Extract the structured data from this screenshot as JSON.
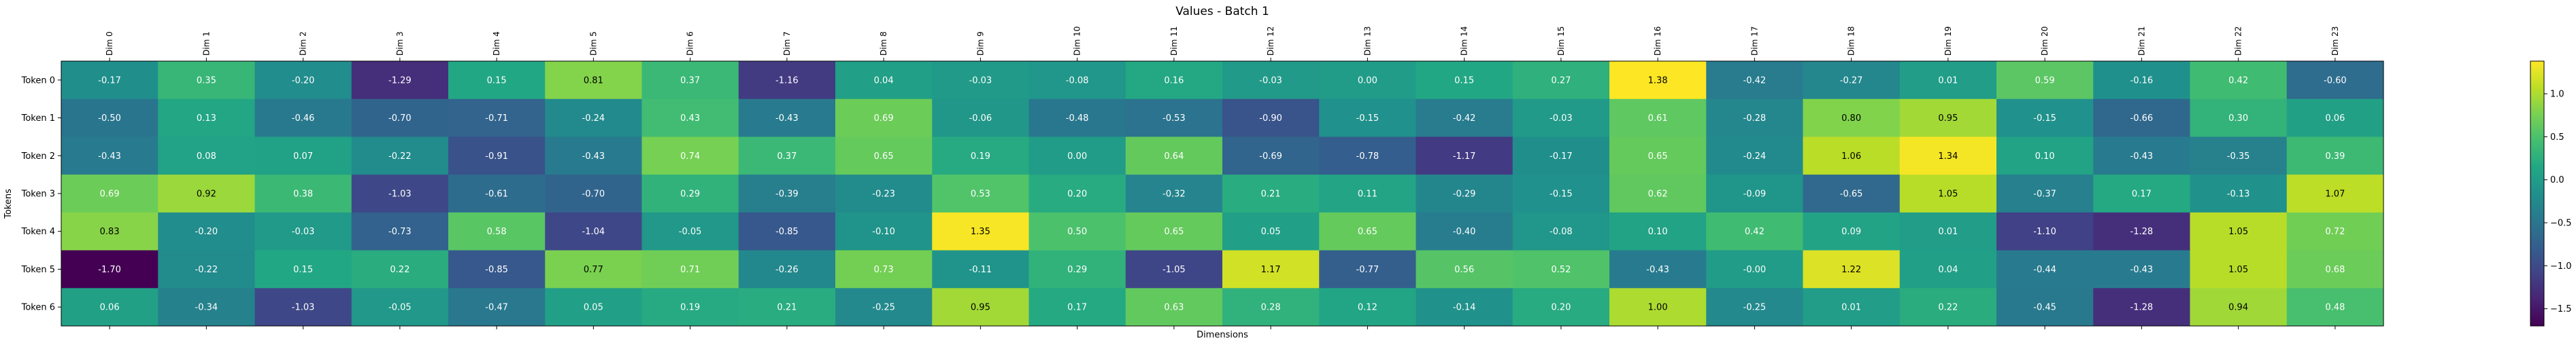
{
  "chart_data": {
    "type": "heatmap",
    "title": "Values - Batch 1",
    "xlabel": "Dimensions",
    "ylabel": "Tokens",
    "x_categories": [
      "Dim 0",
      "Dim 1",
      "Dim 2",
      "Dim 3",
      "Dim 4",
      "Dim 5",
      "Dim 6",
      "Dim 7",
      "Dim 8",
      "Dim 9",
      "Dim 10",
      "Dim 11",
      "Dim 12",
      "Dim 13",
      "Dim 14",
      "Dim 15",
      "Dim 16",
      "Dim 17",
      "Dim 18",
      "Dim 19",
      "Dim 20",
      "Dim 21",
      "Dim 22",
      "Dim 23"
    ],
    "y_categories": [
      "Token 0",
      "Token 1",
      "Token 2",
      "Token 3",
      "Token 4",
      "Token 5",
      "Token 6"
    ],
    "values": [
      [
        -0.17,
        0.35,
        -0.2,
        -1.29,
        0.15,
        0.81,
        0.37,
        -1.16,
        0.04,
        -0.03,
        -0.08,
        0.16,
        -0.03,
        0.0,
        0.15,
        0.27,
        1.38,
        -0.42,
        -0.27,
        0.01,
        0.59,
        -0.16,
        0.42,
        -0.6
      ],
      [
        -0.5,
        0.13,
        -0.46,
        -0.7,
        -0.71,
        -0.24,
        0.43,
        -0.43,
        0.69,
        -0.06,
        -0.48,
        -0.53,
        -0.9,
        -0.15,
        -0.42,
        -0.03,
        0.61,
        -0.28,
        0.8,
        0.95,
        -0.15,
        -0.66,
        0.3,
        0.06
      ],
      [
        -0.43,
        0.08,
        0.07,
        -0.22,
        -0.91,
        -0.43,
        0.74,
        0.37,
        0.65,
        0.19,
        0.0,
        0.64,
        -0.69,
        -0.78,
        -1.17,
        -0.17,
        0.65,
        -0.24,
        1.06,
        1.34,
        0.1,
        -0.43,
        -0.35,
        0.39
      ],
      [
        0.69,
        0.92,
        0.38,
        -1.03,
        -0.61,
        -0.7,
        0.29,
        -0.39,
        -0.23,
        0.53,
        0.2,
        -0.32,
        0.21,
        0.11,
        -0.29,
        -0.15,
        0.62,
        -0.09,
        -0.65,
        1.05,
        -0.37,
        0.17,
        -0.13,
        1.07
      ],
      [
        0.83,
        -0.2,
        -0.03,
        -0.73,
        0.58,
        -1.04,
        -0.05,
        -0.85,
        -0.1,
        1.35,
        0.5,
        0.65,
        0.05,
        0.65,
        -0.4,
        -0.08,
        0.1,
        0.42,
        0.09,
        0.01,
        -1.1,
        -1.28,
        1.05,
        0.72
      ],
      [
        -1.7,
        -0.22,
        0.15,
        0.22,
        -0.85,
        0.77,
        0.71,
        -0.26,
        0.73,
        -0.11,
        0.29,
        -1.05,
        1.17,
        -0.77,
        0.56,
        0.52,
        -0.43,
        -0.0,
        1.22,
        0.04,
        -0.44,
        -0.43,
        1.05,
        0.68
      ],
      [
        0.06,
        -0.34,
        -1.03,
        -0.05,
        -0.47,
        0.05,
        0.19,
        0.21,
        -0.25,
        0.95,
        0.17,
        0.63,
        0.28,
        0.12,
        -0.14,
        0.2,
        1.0,
        -0.25,
        0.01,
        0.22,
        -0.45,
        -1.28,
        0.94,
        0.48
      ]
    ],
    "value_labels": [
      [
        "-0.17",
        "0.35",
        "-0.20",
        "-1.29",
        "0.15",
        "0.81",
        "0.37",
        "-1.16",
        "0.04",
        "-0.03",
        "-0.08",
        "0.16",
        "-0.03",
        "0.00",
        "0.15",
        "0.27",
        "1.38",
        "-0.42",
        "-0.27",
        "0.01",
        "0.59",
        "-0.16",
        "0.42",
        "-0.60"
      ],
      [
        "-0.50",
        "0.13",
        "-0.46",
        "-0.70",
        "-0.71",
        "-0.24",
        "0.43",
        "-0.43",
        "0.69",
        "-0.06",
        "-0.48",
        "-0.53",
        "-0.90",
        "-0.15",
        "-0.42",
        "-0.03",
        "0.61",
        "-0.28",
        "0.80",
        "0.95",
        "-0.15",
        "-0.66",
        "0.30",
        "0.06"
      ],
      [
        "-0.43",
        "0.08",
        "0.07",
        "-0.22",
        "-0.91",
        "-0.43",
        "0.74",
        "0.37",
        "0.65",
        "0.19",
        "0.00",
        "0.64",
        "-0.69",
        "-0.78",
        "-1.17",
        "-0.17",
        "0.65",
        "-0.24",
        "1.06",
        "1.34",
        "0.10",
        "-0.43",
        "-0.35",
        "0.39"
      ],
      [
        "0.69",
        "0.92",
        "0.38",
        "-1.03",
        "-0.61",
        "-0.70",
        "0.29",
        "-0.39",
        "-0.23",
        "0.53",
        "0.20",
        "-0.32",
        "0.21",
        "0.11",
        "-0.29",
        "-0.15",
        "0.62",
        "-0.09",
        "-0.65",
        "1.05",
        "-0.37",
        "0.17",
        "-0.13",
        "1.07"
      ],
      [
        "0.83",
        "-0.20",
        "-0.03",
        "-0.73",
        "0.58",
        "-1.04",
        "-0.05",
        "-0.85",
        "-0.10",
        "1.35",
        "0.50",
        "0.65",
        "0.05",
        "0.65",
        "-0.40",
        "-0.08",
        "0.10",
        "0.42",
        "0.09",
        "0.01",
        "-1.10",
        "-1.28",
        "1.05",
        "0.72"
      ],
      [
        "-1.70",
        "-0.22",
        "0.15",
        "0.22",
        "-0.85",
        "0.77",
        "0.71",
        "-0.26",
        "0.73",
        "-0.11",
        "0.29",
        "-1.05",
        "1.17",
        "-0.77",
        "0.56",
        "0.52",
        "-0.43",
        "-0.00",
        "1.22",
        "0.04",
        "-0.44",
        "-0.43",
        "1.05",
        "0.68"
      ],
      [
        "0.06",
        "-0.34",
        "-1.03",
        "-0.05",
        "-0.47",
        "0.05",
        "0.19",
        "0.21",
        "-0.25",
        "0.95",
        "0.17",
        "0.63",
        "0.28",
        "0.12",
        "-0.14",
        "0.20",
        "1.00",
        "-0.25",
        "0.01",
        "0.22",
        "-0.45",
        "-1.28",
        "0.94",
        "0.48"
      ]
    ],
    "colormap": "viridis",
    "colorbar": {
      "vmin": -1.7,
      "vmax": 1.38,
      "ticks": [
        -1.5,
        -1.0,
        -0.5,
        0.0,
        0.5,
        1.0
      ],
      "tick_labels": [
        "−1.5",
        "−1.0",
        "−0.5",
        "0.0",
        "0.5",
        "1.0"
      ]
    },
    "grid": false,
    "legend": "none"
  }
}
